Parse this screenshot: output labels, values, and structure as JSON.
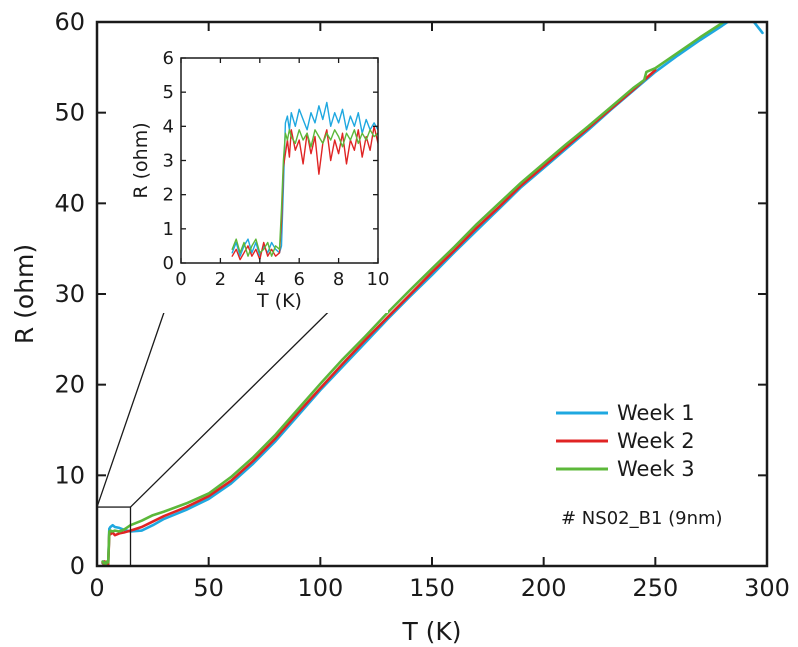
{
  "chart_data": [
    {
      "type": "line",
      "title": "",
      "xlabel": "T (K)",
      "ylabel": "R (ohm)",
      "xlim": [
        0,
        300
      ],
      "ylim": [
        0,
        60
      ],
      "xticks": [
        0,
        50,
        100,
        150,
        200,
        250,
        300
      ],
      "yticks": [
        0,
        10,
        20,
        30,
        40,
        50,
        60
      ],
      "grid": false,
      "legend_position": "bottom-right",
      "annotation": "# NS02_B1 (9nm)",
      "series": [
        {
          "name": "Week 1",
          "color": "#1fa8e0",
          "x": [
            2.5,
            3,
            3.5,
            4,
            4.5,
            5,
            5.5,
            6,
            7,
            8,
            10,
            12,
            15,
            20,
            25,
            30,
            40,
            50,
            60,
            70,
            80,
            90,
            100,
            110,
            120,
            130,
            140,
            150,
            160,
            170,
            180,
            190,
            200,
            210,
            220,
            230,
            240,
            250,
            260,
            270,
            280,
            290,
            298
          ],
          "y": [
            0.3,
            0.5,
            0.2,
            0.4,
            0.3,
            0.3,
            4.1,
            4.3,
            4.5,
            4.3,
            4.2,
            4.0,
            3.8,
            3.9,
            4.5,
            5.2,
            6.2,
            7.4,
            9.1,
            11.3,
            13.8,
            16.6,
            19.4,
            22.0,
            24.6,
            27.2,
            29.7,
            32.1,
            34.6,
            37.0,
            39.4,
            41.8,
            43.9,
            46.0,
            48.1,
            50.3,
            52.4,
            54.5,
            56.3,
            58.0,
            59.6,
            61.3,
            58.8
          ]
        },
        {
          "name": "Week 2",
          "color": "#e02424",
          "x": [
            2.5,
            3,
            3.5,
            4,
            4.5,
            5,
            5.5,
            6,
            7,
            8,
            10,
            12,
            15,
            20,
            25,
            30,
            40,
            50,
            60,
            70,
            80,
            90,
            100,
            110,
            120,
            130,
            140,
            150,
            160,
            170,
            180,
            190,
            200,
            210,
            220,
            230,
            240,
            250
          ],
          "y": [
            0.4,
            0.2,
            0.5,
            0.3,
            0.4,
            0.2,
            3.6,
            3.5,
            3.7,
            3.4,
            3.6,
            3.7,
            3.9,
            4.3,
            4.9,
            5.5,
            6.5,
            7.7,
            9.4,
            11.6,
            14.1,
            16.9,
            19.6,
            22.3,
            24.9,
            27.4,
            29.9,
            32.4,
            34.8,
            37.3,
            39.6,
            42.0,
            44.1,
            46.2,
            48.3,
            50.4,
            52.5,
            54.7
          ]
        },
        {
          "name": "Week 3",
          "color": "#5cb83a",
          "x": [
            2.5,
            3,
            3.5,
            4,
            4.5,
            5,
            5.5,
            6,
            7,
            8,
            10,
            12,
            15,
            20,
            25,
            30,
            40,
            50,
            60,
            70,
            80,
            90,
            100,
            110,
            120,
            130,
            140,
            150,
            160,
            170,
            180,
            190,
            200,
            210,
            220,
            230,
            240,
            245,
            246,
            250,
            260,
            270,
            280,
            290,
            300
          ],
          "y": [
            0.5,
            0.3,
            0.4,
            0.2,
            0.5,
            0.4,
            3.8,
            3.9,
            3.8,
            3.9,
            3.8,
            4.0,
            4.5,
            5.0,
            5.6,
            6.0,
            6.9,
            8.0,
            9.8,
            12.0,
            14.5,
            17.3,
            20.1,
            22.8,
            25.3,
            27.9,
            30.4,
            32.8,
            35.2,
            37.7,
            40.0,
            42.3,
            44.4,
            46.5,
            48.5,
            50.6,
            52.7,
            53.6,
            54.5,
            54.9,
            56.6,
            58.3,
            59.9,
            61.6,
            62.8
          ]
        }
      ]
    },
    {
      "type": "line",
      "title": "",
      "xlabel": "T (K)",
      "ylabel": "R (ohm)",
      "xlim": [
        0,
        10
      ],
      "ylim": [
        0,
        6
      ],
      "xticks": [
        0,
        2,
        4,
        6,
        8,
        10
      ],
      "yticks": [
        0,
        1,
        2,
        3,
        4,
        5,
        6
      ],
      "grid": false,
      "series": [
        {
          "name": "Week 1",
          "color": "#1fa8e0",
          "x": [
            2.6,
            2.8,
            3.0,
            3.2,
            3.4,
            3.6,
            3.8,
            4.0,
            4.2,
            4.4,
            4.6,
            4.8,
            5.0,
            5.1,
            5.2,
            5.3,
            5.4,
            5.5,
            5.6,
            5.8,
            6.0,
            6.2,
            6.4,
            6.6,
            6.8,
            7.0,
            7.2,
            7.4,
            7.6,
            7.8,
            8.0,
            8.2,
            8.4,
            8.6,
            8.8,
            9.0,
            9.2,
            9.4,
            9.6,
            9.8,
            10.0
          ],
          "y": [
            0.3,
            0.6,
            0.2,
            0.5,
            0.7,
            0.3,
            0.6,
            0.2,
            0.5,
            0.3,
            0.6,
            0.4,
            0.3,
            0.5,
            2.2,
            4.1,
            4.3,
            3.9,
            4.4,
            4.0,
            4.5,
            4.2,
            3.9,
            4.4,
            4.1,
            4.6,
            4.2,
            4.7,
            4.0,
            4.4,
            4.1,
            4.5,
            3.9,
            4.3,
            4.0,
            4.4,
            3.8,
            4.2,
            3.9,
            4.1,
            3.9
          ]
        },
        {
          "name": "Week 2",
          "color": "#e02424",
          "x": [
            2.6,
            2.8,
            3.0,
            3.2,
            3.4,
            3.6,
            3.8,
            4.0,
            4.2,
            4.4,
            4.6,
            4.8,
            5.0,
            5.1,
            5.2,
            5.3,
            5.4,
            5.5,
            5.6,
            5.8,
            6.0,
            6.2,
            6.4,
            6.6,
            6.8,
            7.0,
            7.2,
            7.4,
            7.6,
            7.8,
            8.0,
            8.2,
            8.4,
            8.6,
            8.8,
            9.0,
            9.2,
            9.4,
            9.6,
            9.8,
            10.0
          ],
          "y": [
            0.2,
            0.4,
            0.1,
            0.3,
            0.5,
            0.2,
            0.4,
            0.1,
            0.6,
            0.2,
            0.4,
            0.2,
            0.3,
            1.2,
            2.8,
            3.2,
            3.6,
            3.1,
            3.9,
            3.3,
            3.6,
            2.9,
            3.8,
            3.2,
            3.7,
            2.6,
            3.5,
            3.9,
            3.0,
            3.6,
            3.2,
            3.8,
            2.9,
            3.6,
            3.3,
            3.9,
            3.1,
            3.7,
            3.3,
            4.0,
            3.5
          ]
        },
        {
          "name": "Week 3",
          "color": "#5cb83a",
          "x": [
            2.6,
            2.8,
            3.0,
            3.2,
            3.4,
            3.6,
            3.8,
            4.0,
            4.2,
            4.4,
            4.6,
            4.8,
            5.0,
            5.1,
            5.2,
            5.3,
            5.4,
            5.5,
            5.6,
            5.8,
            6.0,
            6.2,
            6.4,
            6.6,
            6.8,
            7.0,
            7.2,
            7.4,
            7.6,
            7.8,
            8.0,
            8.2,
            8.4,
            8.6,
            8.8,
            9.0,
            9.2,
            9.4,
            9.6,
            9.8,
            10.0
          ],
          "y": [
            0.4,
            0.7,
            0.3,
            0.6,
            0.2,
            0.5,
            0.7,
            0.3,
            0.4,
            0.6,
            0.2,
            0.5,
            0.4,
            1.6,
            3.0,
            3.8,
            3.6,
            3.9,
            3.7,
            3.5,
            3.9,
            3.6,
            3.8,
            3.4,
            3.9,
            3.7,
            3.5,
            3.8,
            3.6,
            3.9,
            3.7,
            3.4,
            3.8,
            3.6,
            3.9,
            3.5,
            3.8,
            3.6,
            3.9,
            3.7,
            3.8
          ]
        }
      ]
    }
  ]
}
